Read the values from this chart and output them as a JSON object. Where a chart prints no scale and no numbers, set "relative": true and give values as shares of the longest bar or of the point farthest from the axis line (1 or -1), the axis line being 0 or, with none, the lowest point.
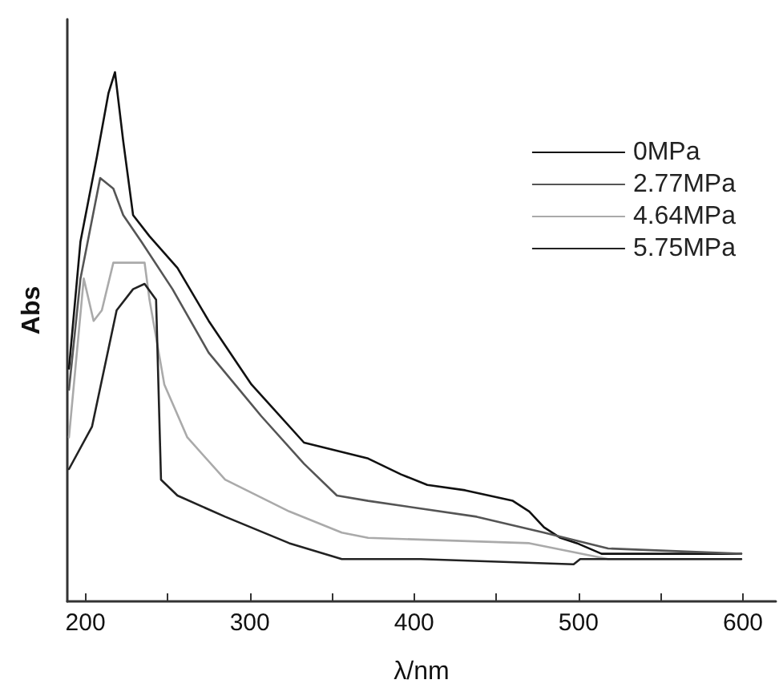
{
  "chart_data": {
    "type": "line",
    "xlabel": "λ/nm",
    "ylabel": "Abs",
    "relative": true,
    "xlim": [
      189,
      620
    ],
    "xticks": [
      200,
      {
        "value": 250,
        "label": null
      },
      300,
      {
        "value": 350,
        "label": null
      },
      400,
      {
        "value": 450,
        "label": null
      },
      500,
      {
        "value": 550,
        "label": null
      },
      600
    ],
    "legend": "top right",
    "grid": false,
    "marker": "none",
    "line_style": "solid",
    "series": [
      {
        "name": "0MPa",
        "color": "#111111",
        "x": [
          190,
          197,
          207,
          214,
          218,
          223,
          229,
          239,
          256,
          275,
          301,
          333,
          372,
          392,
          408,
          431,
          460,
          470,
          479,
          489,
          499,
          514,
          538,
          599
        ],
        "values": [
          0.44,
          0.68,
          0.84,
          0.96,
          1,
          0.87,
          0.73,
          0.69,
          0.63,
          0.53,
          0.41,
          0.3,
          0.27,
          0.24,
          0.22,
          0.21,
          0.19,
          0.17,
          0.14,
          0.12,
          0.11,
          0.09,
          0.09,
          0.09
        ]
      },
      {
        "name": "2.77MPa",
        "color": "#555555",
        "x": [
          190,
          197,
          209,
          217,
          223,
          234,
          253,
          275,
          307,
          333,
          353,
          372,
          438,
          479,
          518,
          599
        ],
        "values": [
          0.4,
          0.61,
          0.8,
          0.78,
          0.73,
          0.68,
          0.59,
          0.47,
          0.35,
          0.26,
          0.2,
          0.19,
          0.16,
          0.13,
          0.1,
          0.09
        ]
      },
      {
        "name": "4.64MPa",
        "color": "#aaaaaa",
        "x": [
          190,
          199,
          205,
          210,
          217,
          236,
          239,
          248,
          262,
          285,
          324,
          356,
          372,
          470,
          518,
          599
        ],
        "values": [
          0.31,
          0.61,
          0.53,
          0.55,
          0.64,
          0.64,
          0.57,
          0.41,
          0.31,
          0.23,
          0.17,
          0.13,
          0.12,
          0.11,
          0.08,
          0.08
        ]
      },
      {
        "name": "5.75MPa",
        "color": "#222222",
        "x": [
          190,
          204,
          219,
          229,
          236,
          243,
          246,
          256,
          285,
          324,
          356,
          404,
          497,
          501,
          599
        ],
        "values": [
          0.25,
          0.33,
          0.55,
          0.59,
          0.6,
          0.57,
          0.23,
          0.2,
          0.16,
          0.11,
          0.08,
          0.08,
          0.07,
          0.08,
          0.08
        ]
      }
    ]
  }
}
